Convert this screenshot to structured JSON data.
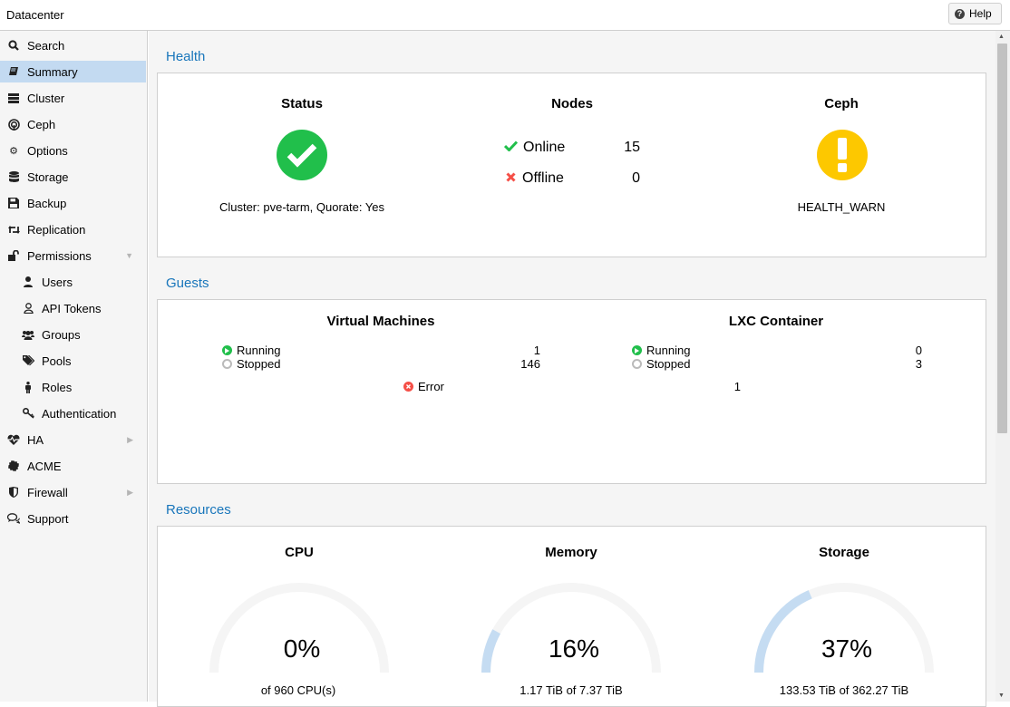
{
  "topbar": {
    "title": "Datacenter",
    "help_label": "Help"
  },
  "sidebar": {
    "items": [
      {
        "label": "Search",
        "icon": "search-icon"
      },
      {
        "label": "Summary",
        "icon": "book-icon",
        "selected": true
      },
      {
        "label": "Cluster",
        "icon": "server-icon"
      },
      {
        "label": "Ceph",
        "icon": "ceph-icon"
      },
      {
        "label": "Options",
        "icon": "gear-icon"
      },
      {
        "label": "Storage",
        "icon": "database-icon"
      },
      {
        "label": "Backup",
        "icon": "floppy-icon"
      },
      {
        "label": "Replication",
        "icon": "retweet-icon"
      },
      {
        "label": "Permissions",
        "icon": "unlock-icon",
        "expanded": true
      },
      {
        "label": "Users",
        "icon": "user-icon",
        "child": true
      },
      {
        "label": "API Tokens",
        "icon": "user-outline-icon",
        "child": true
      },
      {
        "label": "Groups",
        "icon": "users-icon",
        "child": true
      },
      {
        "label": "Pools",
        "icon": "tags-icon",
        "child": true
      },
      {
        "label": "Roles",
        "icon": "male-icon",
        "child": true
      },
      {
        "label": "Authentication",
        "icon": "key-icon",
        "child": true
      },
      {
        "label": "HA",
        "icon": "heartbeat-icon",
        "collapsed": true
      },
      {
        "label": "ACME",
        "icon": "certificate-icon"
      },
      {
        "label": "Firewall",
        "icon": "shield-icon",
        "collapsed": true
      },
      {
        "label": "Support",
        "icon": "comments-icon"
      }
    ]
  },
  "health": {
    "header": "Health",
    "status_title": "Status",
    "status_text": "Cluster: pve-tarm, Quorate: Yes",
    "nodes_title": "Nodes",
    "online_label": "Online",
    "online_count": "15",
    "offline_label": "Offline",
    "offline_count": "0",
    "ceph_title": "Ceph",
    "ceph_status": "HEALTH_WARN",
    "colors": {
      "ok": "#21bf4b",
      "warn": "#fdc800",
      "error": "#f54f47"
    }
  },
  "guests": {
    "header": "Guests",
    "vm_title": "Virtual Machines",
    "vm_running_label": "Running",
    "vm_running": "1",
    "vm_stopped_label": "Stopped",
    "vm_stopped": "146",
    "vm_error_label": "Error",
    "vm_error": "1",
    "lxc_title": "LXC Container",
    "lxc_running_label": "Running",
    "lxc_running": "0",
    "lxc_stopped_label": "Stopped",
    "lxc_stopped": "3"
  },
  "resources": {
    "header": "Resources",
    "cpu_title": "CPU",
    "cpu_percent_text": "0%",
    "cpu_fraction": 0,
    "cpu_sub": "of 960 CPU(s)",
    "mem_title": "Memory",
    "mem_percent_text": "16%",
    "mem_fraction": 0.16,
    "mem_sub": "1.17 TiB of 7.37 TiB",
    "storage_title": "Storage",
    "storage_percent_text": "37%",
    "storage_fraction": 0.37,
    "storage_sub": "133.53 TiB of 362.27 TiB"
  }
}
